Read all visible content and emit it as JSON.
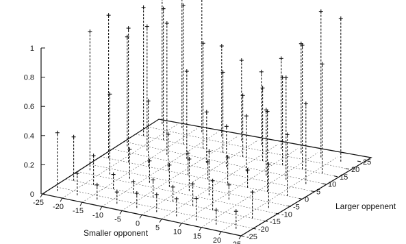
{
  "chart_data": {
    "type": "scatter",
    "style": "3d-impulse",
    "xlabel": "Smaller opponent",
    "ylabel": "Larger oppenent",
    "zlabel": "",
    "xlim": [
      -25,
      25
    ],
    "ylim": [
      -25,
      25
    ],
    "zlim": [
      0,
      1
    ],
    "x_ticks": [
      "-25",
      "-20",
      "-15",
      "-10",
      "-5",
      "0",
      "5",
      "10",
      "15",
      "20",
      "25"
    ],
    "y_ticks": [
      "-25",
      "-20",
      "-15",
      "-10",
      "-5",
      "0",
      "5",
      "10",
      "15",
      "20",
      "25"
    ],
    "z_ticks": [
      "0",
      "0.2",
      "0.4",
      "0.6",
      "0.8",
      "1"
    ],
    "grid": true,
    "points": [
      {
        "x": -23,
        "y": 23,
        "z": 0.98
      },
      {
        "x": -18,
        "y": 23,
        "z": 0.92
      },
      {
        "x": -13,
        "y": 23,
        "z": 0.92
      },
      {
        "x": -8,
        "y": 23,
        "z": 0.62
      },
      {
        "x": -23,
        "y": 15,
        "z": 0.88
      },
      {
        "x": -18,
        "y": 15,
        "z": 0.9
      },
      {
        "x": -13,
        "y": 15,
        "z": 0.95
      },
      {
        "x": -8,
        "y": 15,
        "z": 0.72
      },
      {
        "x": -3,
        "y": 15,
        "z": 0.55
      },
      {
        "x": -23,
        "y": 8,
        "z": 0.75
      },
      {
        "x": -18,
        "y": 8,
        "z": 0.85
      },
      {
        "x": -13,
        "y": 8,
        "z": 0.9
      },
      {
        "x": -8,
        "y": 8,
        "z": 0.6
      },
      {
        "x": -3,
        "y": 8,
        "z": 0.35
      },
      {
        "x": 2,
        "y": 8,
        "z": 0.28
      },
      {
        "x": -23,
        "y": 0,
        "z": 0.98
      },
      {
        "x": -18,
        "y": 0,
        "z": 0.92
      },
      {
        "x": -13,
        "y": 0,
        "z": 0.45
      },
      {
        "x": -8,
        "y": 0,
        "z": 0.25
      },
      {
        "x": -3,
        "y": 0,
        "z": 0.15
      },
      {
        "x": 2,
        "y": 0,
        "z": 0.12
      },
      {
        "x": 7,
        "y": 0,
        "z": 0.18
      },
      {
        "x": 12,
        "y": 0,
        "z": 0.12
      },
      {
        "x": -23,
        "y": -8,
        "z": 0.95
      },
      {
        "x": -18,
        "y": -8,
        "z": 0.55
      },
      {
        "x": -13,
        "y": -8,
        "z": 0.2
      },
      {
        "x": -8,
        "y": -8,
        "z": 0.15
      },
      {
        "x": -3,
        "y": -8,
        "z": 0.15
      },
      {
        "x": 2,
        "y": -8,
        "z": 0.22
      },
      {
        "x": 7,
        "y": -8,
        "z": 0.3
      },
      {
        "x": 12,
        "y": -8,
        "z": 0.1
      },
      {
        "x": -23,
        "y": -15,
        "z": 0.3
      },
      {
        "x": -18,
        "y": -15,
        "z": 0.2
      },
      {
        "x": -13,
        "y": -15,
        "z": 0.1
      },
      {
        "x": -8,
        "y": -15,
        "z": 0.08
      },
      {
        "x": -3,
        "y": -15,
        "z": 0.12
      },
      {
        "x": 2,
        "y": -15,
        "z": 0.1
      },
      {
        "x": 7,
        "y": -15,
        "z": 0.15
      },
      {
        "x": 12,
        "y": -15,
        "z": 0.2
      },
      {
        "x": -23,
        "y": -22,
        "z": 0.4
      },
      {
        "x": -18,
        "y": -22,
        "z": 0.15
      },
      {
        "x": -13,
        "y": -22,
        "z": 0.1
      },
      {
        "x": -8,
        "y": -22,
        "z": 0.08
      },
      {
        "x": -3,
        "y": -22,
        "z": 0.1
      },
      {
        "x": 2,
        "y": -22,
        "z": 0.12
      },
      {
        "x": 7,
        "y": -22,
        "z": 0.12
      },
      {
        "x": 12,
        "y": -22,
        "z": 0.15
      },
      {
        "x": 17,
        "y": -22,
        "z": 0.1
      },
      {
        "x": 17,
        "y": 0,
        "z": 0.55
      },
      {
        "x": 17,
        "y": 8,
        "z": 0.7
      },
      {
        "x": 17,
        "y": 15,
        "z": 0.85
      },
      {
        "x": 17,
        "y": 23,
        "z": 1.0
      },
      {
        "x": 22,
        "y": 0,
        "z": 0.42
      },
      {
        "x": 22,
        "y": 8,
        "z": 0.55
      },
      {
        "x": 22,
        "y": 15,
        "z": 0.75
      },
      {
        "x": 22,
        "y": 23,
        "z": 0.98
      },
      {
        "x": 22,
        "y": -8,
        "z": 0.3
      },
      {
        "x": 22,
        "y": -15,
        "z": 0.18
      },
      {
        "x": 22,
        "y": -22,
        "z": 0.12
      },
      {
        "x": 12,
        "y": 8,
        "z": 0.45
      },
      {
        "x": 12,
        "y": 15,
        "z": 0.6
      },
      {
        "x": 12,
        "y": 23,
        "z": 0.75
      },
      {
        "x": 7,
        "y": 8,
        "z": 0.38
      },
      {
        "x": 7,
        "y": 15,
        "z": 0.5
      },
      {
        "x": 7,
        "y": 23,
        "z": 0.62
      },
      {
        "x": 2,
        "y": 15,
        "z": 0.42
      },
      {
        "x": 2,
        "y": 23,
        "z": 0.5
      },
      {
        "x": -3,
        "y": 23,
        "z": 0.55
      }
    ]
  }
}
